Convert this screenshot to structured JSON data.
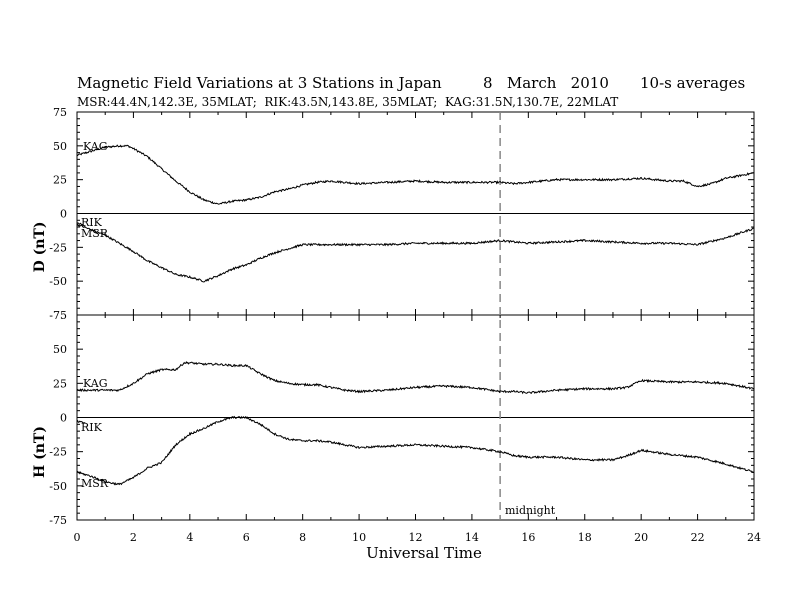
{
  "chart_data": {
    "type": "line",
    "title": "Magnetic Field Variations at 3 Stations in Japan",
    "date": "8   March   2010",
    "averaging": "10-s averages",
    "subtitle": "MSR:44.4N,142.3E, 35MLAT;  RIK:43.5N,143.8E, 35MLAT;  KAG:31.5N,130.7E, 22MLAT",
    "xlabel": "Universal Time",
    "xlim": [
      0,
      24
    ],
    "xticks": [
      "0",
      "2",
      "4",
      "6",
      "8",
      "10",
      "12",
      "14",
      "16",
      "18",
      "20",
      "22",
      "24"
    ],
    "annotation": {
      "x": 15,
      "label": "midnight",
      "style": "dashed"
    },
    "panels": [
      {
        "ylabel": "D (nT)",
        "ylim": [
          -75,
          75
        ],
        "yticks": [
          "75",
          "50",
          "25",
          "0",
          "-25",
          "-50",
          "-75"
        ],
        "series": [
          {
            "name": "KAG",
            "x": [
              0,
              0.5,
              1,
              1.5,
              1.8,
              2,
              2.5,
              3,
              3.5,
              4,
              4.5,
              5,
              5.5,
              6,
              6.5,
              7,
              7.5,
              8,
              8.5,
              9,
              10,
              11,
              12,
              13,
              14,
              15,
              15.5,
              16,
              17,
              18,
              19,
              20,
              21,
              21.5,
              22,
              22.5,
              23,
              23.5,
              24
            ],
            "y": [
              43,
              46,
              49,
              50,
              50,
              48,
              42,
              33,
              24,
              16,
              10,
              7,
              9,
              10,
              12,
              16,
              18,
              21,
              23,
              24,
              22,
              23,
              24,
              23,
              23,
              23,
              22,
              23,
              25,
              25,
              25,
              26,
              24,
              24,
              20,
              22,
              26,
              28,
              30
            ]
          },
          {
            "name": "RIK",
            "x": [
              0,
              0.3
            ],
            "y": [
              -7,
              -9
            ]
          },
          {
            "name": "MSR",
            "x": [
              0,
              0.5,
              1,
              1.5,
              2,
              2.5,
              3,
              3.5,
              4,
              4.5,
              5,
              5.5,
              6,
              6.5,
              7,
              7.5,
              8,
              9,
              10,
              11,
              12,
              13,
              14,
              15,
              15.5,
              16,
              17,
              18,
              19,
              20,
              21,
              22,
              23,
              24
            ],
            "y": [
              -8,
              -12,
              -16,
              -22,
              -28,
              -35,
              -40,
              -45,
              -47,
              -50,
              -46,
              -41,
              -38,
              -33,
              -29,
              -26,
              -23,
              -23,
              -23,
              -23,
              -22,
              -22,
              -22,
              -20,
              -21,
              -22,
              -21,
              -20,
              -21,
              -22,
              -22,
              -23,
              -18,
              -11
            ]
          }
        ]
      },
      {
        "ylabel": "H (nT)",
        "ylim": [
          -75,
          75
        ],
        "yticks": [
          "75",
          "50",
          "25",
          "0",
          "-25",
          "-50",
          "-75"
        ],
        "series": [
          {
            "name": "KAG",
            "x": [
              0,
              0.5,
              1,
              1.5,
              2,
              2.5,
              3,
              3.5,
              3.8,
              4,
              4.5,
              5,
              5.5,
              6,
              6.5,
              7,
              7.5,
              8,
              8.5,
              9,
              9.5,
              10,
              11,
              12,
              13,
              14,
              15,
              15.5,
              16,
              17,
              18,
              19,
              19.5,
              20,
              21,
              22,
              23,
              24
            ],
            "y": [
              20,
              20,
              20,
              20,
              25,
              32,
              35,
              35,
              40,
              40,
              39,
              39,
              38,
              38,
              32,
              27,
              25,
              24,
              24,
              22,
              20,
              19,
              20,
              22,
              23,
              22,
              19,
              19,
              18,
              20,
              21,
              21,
              22,
              27,
              26,
              26,
              25,
              21
            ]
          },
          {
            "name": "RIK",
            "x": [
              0,
              0.3
            ],
            "y": [
              -3,
              -4
            ]
          },
          {
            "name": "MSR",
            "x": [
              0,
              0.5,
              1,
              1.5,
              2,
              2.5,
              3,
              3.5,
              4,
              4.5,
              5,
              5.5,
              6,
              6.5,
              7,
              7.5,
              8,
              8.5,
              9,
              9.5,
              10,
              11,
              12,
              13,
              14,
              15,
              15.5,
              16,
              17,
              18,
              19,
              19.5,
              20,
              21,
              22,
              23,
              24
            ],
            "y": [
              -40,
              -43,
              -47,
              -49,
              -44,
              -37,
              -33,
              -20,
              -12,
              -8,
              -3,
              0,
              0,
              -5,
              -12,
              -16,
              -17,
              -17,
              -18,
              -20,
              -22,
              -21,
              -20,
              -21,
              -22,
              -25,
              -28,
              -29,
              -29,
              -31,
              -31,
              -28,
              -24,
              -27,
              -29,
              -34,
              -40
            ]
          }
        ]
      }
    ]
  }
}
